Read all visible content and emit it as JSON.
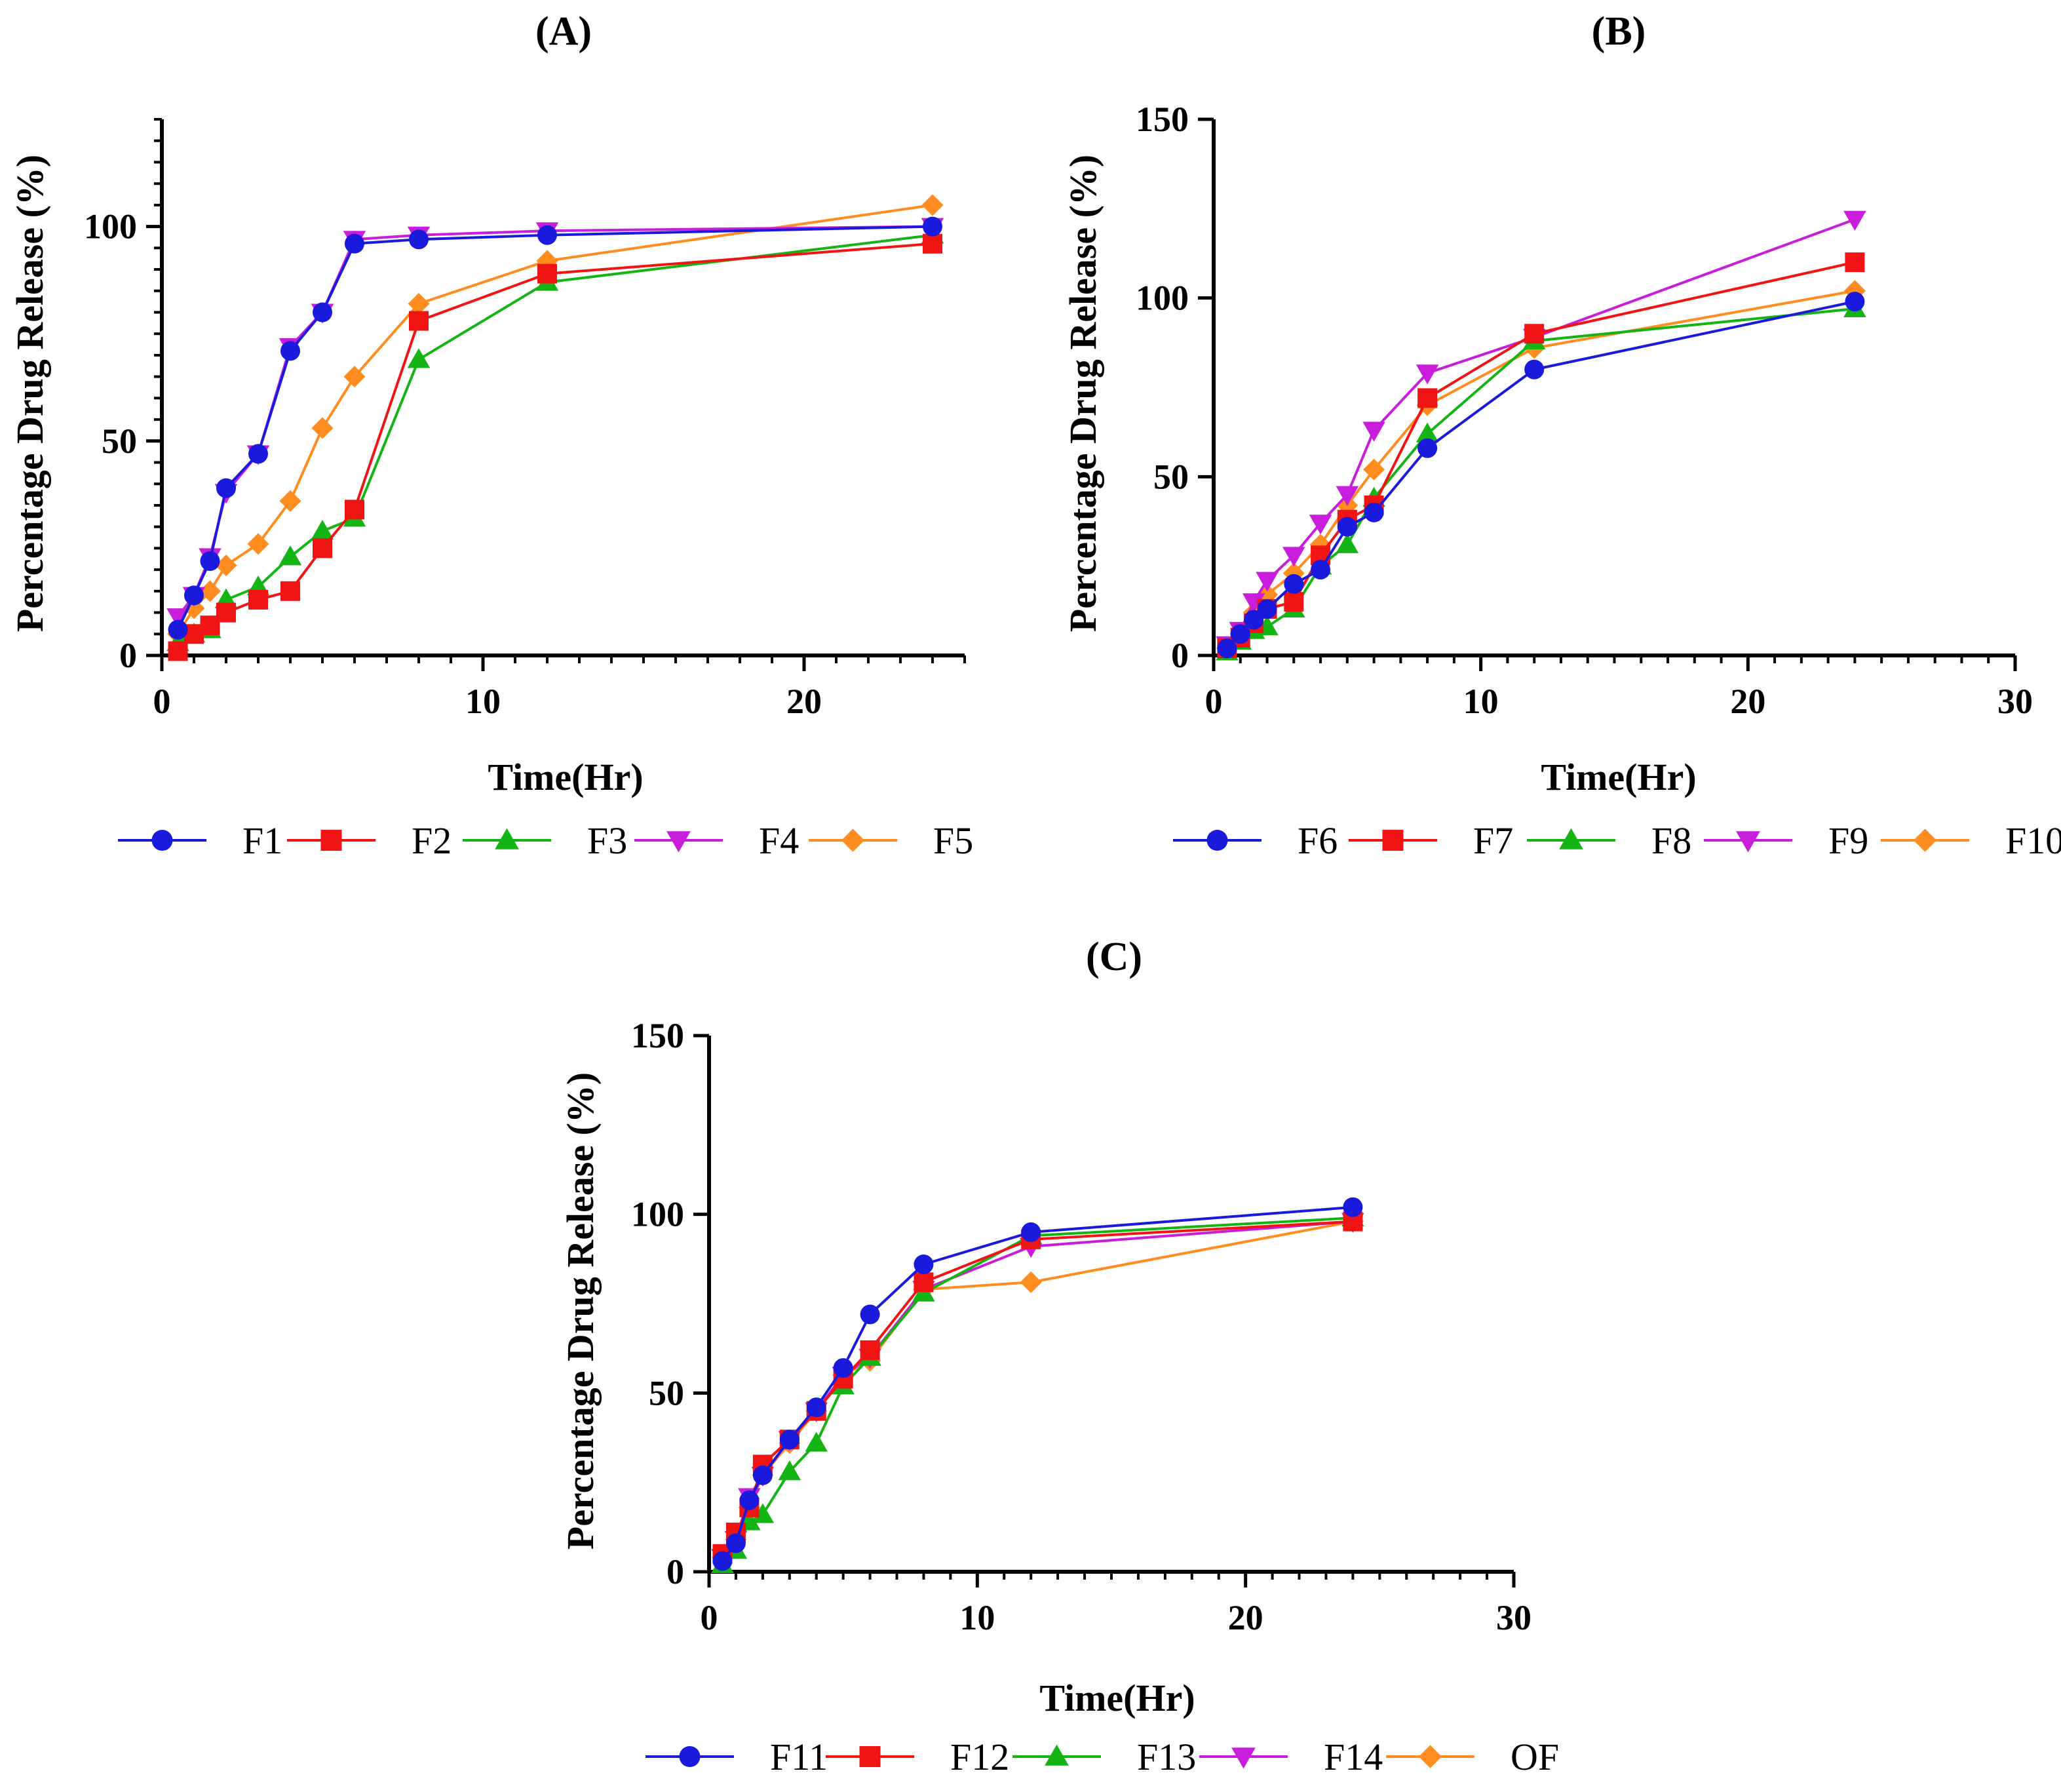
{
  "figure": {
    "panels_text": [
      "(A)",
      "(B)",
      "(C)"
    ]
  },
  "colors": {
    "blue": "#1a1adc",
    "red": "#f01414",
    "green": "#14b414",
    "magenta": "#c81edc",
    "orange": "#ff8c1e"
  },
  "chart_data": [
    {
      "type": "line",
      "title": "(A)",
      "xlabel": "Time(Hr)",
      "ylabel": "Percentage Drug Release (%)",
      "xlim": [
        0,
        25
      ],
      "ylim": [
        0,
        125
      ],
      "xticks": [
        0,
        10,
        20
      ],
      "yticks": [
        0,
        50,
        100
      ],
      "y_minor_step": 5,
      "grid": false,
      "legend_position": "bottom",
      "x": [
        0.5,
        1,
        1.5,
        2,
        3,
        4,
        5,
        6,
        8,
        12,
        24
      ],
      "series": [
        {
          "name": "F1",
          "color": "#1a1adc",
          "marker": "circle",
          "values": [
            6,
            14,
            22,
            39,
            47,
            71,
            80,
            96,
            97,
            98,
            100
          ]
        },
        {
          "name": "F2",
          "color": "#f01414",
          "marker": "square",
          "values": [
            1,
            5,
            7,
            10,
            13,
            15,
            25,
            34,
            78,
            89,
            96
          ]
        },
        {
          "name": "F3",
          "color": "#14b414",
          "marker": "triangle-up",
          "values": [
            3,
            5,
            6,
            13,
            16,
            23,
            29,
            32,
            69,
            87,
            98
          ]
        },
        {
          "name": "F4",
          "color": "#c81edc",
          "marker": "triangle-down",
          "values": [
            9,
            14,
            23,
            38,
            47,
            72,
            80,
            97,
            98,
            99,
            100
          ]
        },
        {
          "name": "F5",
          "color": "#ff8c1e",
          "marker": "diamond",
          "values": [
            5,
            11,
            15,
            21,
            26,
            36,
            53,
            65,
            82,
            92,
            105
          ]
        }
      ]
    },
    {
      "type": "line",
      "title": "(B)",
      "xlabel": "Time(Hr)",
      "ylabel": "Percentage Drug Release (%)",
      "xlim": [
        0,
        30
      ],
      "ylim": [
        0,
        150
      ],
      "xticks": [
        0,
        10,
        20,
        30
      ],
      "yticks": [
        0,
        50,
        100,
        150
      ],
      "grid": false,
      "legend_position": "bottom",
      "x": [
        0.5,
        1,
        1.5,
        2,
        3,
        4,
        5,
        6,
        8,
        12,
        24
      ],
      "series": [
        {
          "name": "F6",
          "color": "#1a1adc",
          "marker": "circle",
          "values": [
            2,
            6,
            10,
            13,
            20,
            24,
            36,
            40,
            58,
            80,
            99
          ]
        },
        {
          "name": "F7",
          "color": "#f01414",
          "marker": "square",
          "values": [
            2,
            5,
            9,
            13,
            15,
            28,
            38,
            42,
            72,
            90,
            110
          ]
        },
        {
          "name": "F8",
          "color": "#14b414",
          "marker": "triangle-up",
          "values": [
            1,
            4,
            7,
            8,
            13,
            25,
            31,
            44,
            62,
            88,
            97
          ]
        },
        {
          "name": "F9",
          "color": "#c81edc",
          "marker": "triangle-down",
          "values": [
            3,
            7,
            15,
            21,
            28,
            37,
            45,
            63,
            79,
            89,
            122
          ]
        },
        {
          "name": "F10",
          "color": "#ff8c1e",
          "marker": "diamond",
          "values": [
            2,
            6,
            12,
            17,
            23,
            31,
            42,
            52,
            70,
            86,
            102
          ]
        }
      ]
    },
    {
      "type": "line",
      "title": "(C)",
      "xlabel": "Time(Hr)",
      "ylabel": "Percentage Drug Release (%)",
      "xlim": [
        0,
        30
      ],
      "ylim": [
        0,
        150
      ],
      "xticks": [
        0,
        10,
        20,
        30
      ],
      "yticks": [
        0,
        50,
        100,
        150
      ],
      "grid": false,
      "legend_position": "bottom",
      "x": [
        0.5,
        1,
        1.5,
        2,
        3,
        4,
        5,
        6,
        8,
        12,
        24
      ],
      "series": [
        {
          "name": "F11",
          "color": "#1a1adc",
          "marker": "circle",
          "values": [
            3,
            8,
            20,
            27,
            37,
            46,
            57,
            72,
            86,
            95,
            102
          ]
        },
        {
          "name": "F12",
          "color": "#f01414",
          "marker": "square",
          "values": [
            5,
            11,
            18,
            30,
            37,
            45,
            54,
            62,
            81,
            93,
            98
          ]
        },
        {
          "name": "F13",
          "color": "#14b414",
          "marker": "triangle-up",
          "values": [
            2,
            6,
            14,
            16,
            28,
            36,
            52,
            60,
            78,
            94,
            99
          ]
        },
        {
          "name": "F14",
          "color": "#c81edc",
          "marker": "triangle-down",
          "values": [
            4,
            9,
            21,
            27,
            37,
            45,
            55,
            60,
            79,
            91,
            98
          ]
        },
        {
          "name": "OF",
          "color": "#ff8c1e",
          "marker": "diamond",
          "values": [
            4,
            9,
            18,
            27,
            36,
            45,
            55,
            59,
            79,
            81,
            98
          ]
        }
      ]
    }
  ]
}
